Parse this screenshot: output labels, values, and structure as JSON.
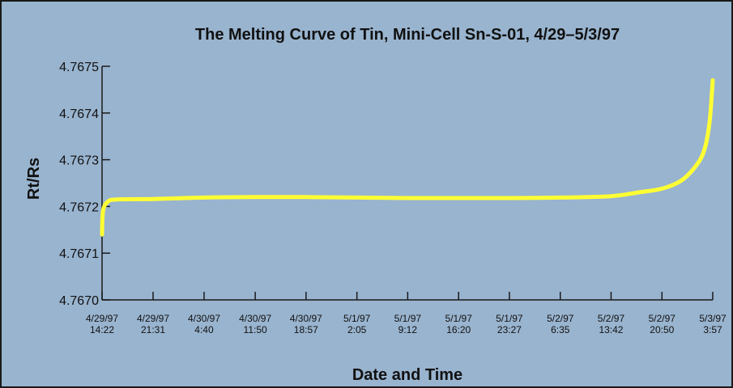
{
  "chart_data": {
    "type": "line",
    "title": "The Melting Curve of Tin, Mini-Cell Sn-S-01, 4/29–5/3/97",
    "xlabel": "Date and Time",
    "ylabel": "Rt/Rs",
    "ylim": [
      4.767,
      4.7675
    ],
    "yticks": [
      "4.7670",
      "4.7671",
      "4.7672",
      "4.7673",
      "4.7674",
      "4.7675"
    ],
    "xticks": [
      {
        "date": "4/29/97",
        "time": "14:22"
      },
      {
        "date": "4/29/97",
        "time": "21:31"
      },
      {
        "date": "4/30/97",
        "time": "4:40"
      },
      {
        "date": "4/30/97",
        "time": "11:50"
      },
      {
        "date": "4/30/97",
        "time": "18:57"
      },
      {
        "date": "5/1/97",
        "time": "2:05"
      },
      {
        "date": "5/1/97",
        "time": "9:12"
      },
      {
        "date": "5/1/97",
        "time": "16:20"
      },
      {
        "date": "5/1/97",
        "time": "23:27"
      },
      {
        "date": "5/2/97",
        "time": "6:35"
      },
      {
        "date": "5/2/97",
        "time": "13:42"
      },
      {
        "date": "5/2/97",
        "time": "20:50"
      },
      {
        "date": "5/3/97",
        "time": "3:57"
      }
    ],
    "series": [
      {
        "color": "#ffff33",
        "points": [
          {
            "x": "4/29/97 14:22",
            "y": 4.76714
          },
          {
            "x": "4/29/97 14:30",
            "y": 4.76719
          },
          {
            "x": "4/29/97 15:10",
            "y": 4.76721
          },
          {
            "x": "4/29/97 16:30",
            "y": 4.767215
          },
          {
            "x": "4/29/97 21:31",
            "y": 4.767216
          },
          {
            "x": "4/30/97 4:40",
            "y": 4.767219
          },
          {
            "x": "4/30/97 11:50",
            "y": 4.76722
          },
          {
            "x": "4/30/97 18:57",
            "y": 4.76722
          },
          {
            "x": "5/1/97 2:05",
            "y": 4.767219
          },
          {
            "x": "5/1/97 9:12",
            "y": 4.767218
          },
          {
            "x": "5/1/97 16:20",
            "y": 4.767218
          },
          {
            "x": "5/1/97 23:27",
            "y": 4.767218
          },
          {
            "x": "5/2/97 6:35",
            "y": 4.767219
          },
          {
            "x": "5/2/97 13:42",
            "y": 4.767222
          },
          {
            "x": "5/2/97 17:30",
            "y": 4.76723
          },
          {
            "x": "5/2/97 20:50",
            "y": 4.767238
          },
          {
            "x": "5/2/97 23:30",
            "y": 4.767255
          },
          {
            "x": "5/3/97 1:30",
            "y": 4.767285
          },
          {
            "x": "5/3/97 2:45",
            "y": 4.76732
          },
          {
            "x": "5/3/97 3:30",
            "y": 4.76738
          },
          {
            "x": "5/3/97 3:57",
            "y": 4.76747
          }
        ]
      }
    ],
    "grid": false,
    "legend": "none"
  },
  "colors": {
    "background": "#99b4cf",
    "line": "#ffff33",
    "axis": "#1a1a1a"
  }
}
